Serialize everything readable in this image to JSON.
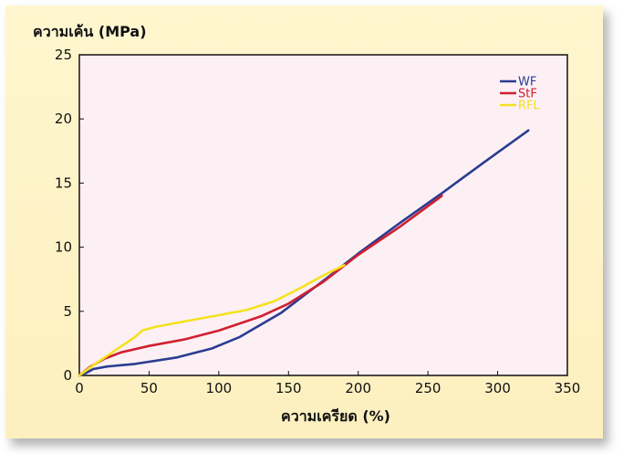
{
  "chart_data": {
    "type": "line",
    "title": "",
    "ylabel": "ความเค้น (MPa)",
    "xlabel": "ความเครียด (%)",
    "xlim": [
      0,
      350
    ],
    "ylim": [
      0,
      25
    ],
    "xticks": [
      0,
      50,
      100,
      150,
      200,
      250,
      300,
      350
    ],
    "yticks": [
      0,
      5,
      10,
      15,
      20,
      25
    ],
    "grid": false,
    "legend_position": "top-right",
    "series": [
      {
        "name": "WF",
        "color": "#2b3c92",
        "x": [
          0,
          5,
          10,
          20,
          40,
          70,
          95,
          115,
          145,
          180,
          200,
          230,
          260,
          290,
          322
        ],
        "y": [
          0,
          0.2,
          0.5,
          0.7,
          0.9,
          1.4,
          2.1,
          3.0,
          4.9,
          7.8,
          9.5,
          11.9,
          14.2,
          16.6,
          19.1
        ]
      },
      {
        "name": "StF",
        "color": "#d02030",
        "x": [
          0,
          8,
          18,
          30,
          50,
          75,
          100,
          130,
          150,
          175,
          200,
          230,
          260
        ],
        "y": [
          0,
          0.7,
          1.3,
          1.8,
          2.3,
          2.8,
          3.5,
          4.6,
          5.6,
          7.3,
          9.4,
          11.6,
          14.0
        ]
      },
      {
        "name": "RFL",
        "color": "#f5e11e",
        "x": [
          0,
          10,
          25,
          40,
          45,
          55,
          75,
          100,
          120,
          140,
          160,
          175,
          190
        ],
        "y": [
          0,
          0.8,
          1.9,
          3.0,
          3.5,
          3.8,
          4.2,
          4.7,
          5.1,
          5.8,
          6.9,
          7.8,
          8.6
        ]
      }
    ]
  },
  "colors": {
    "plot_background": "#fcf0f4",
    "panel_background": "#fdf2c6",
    "axis": "#111111"
  }
}
